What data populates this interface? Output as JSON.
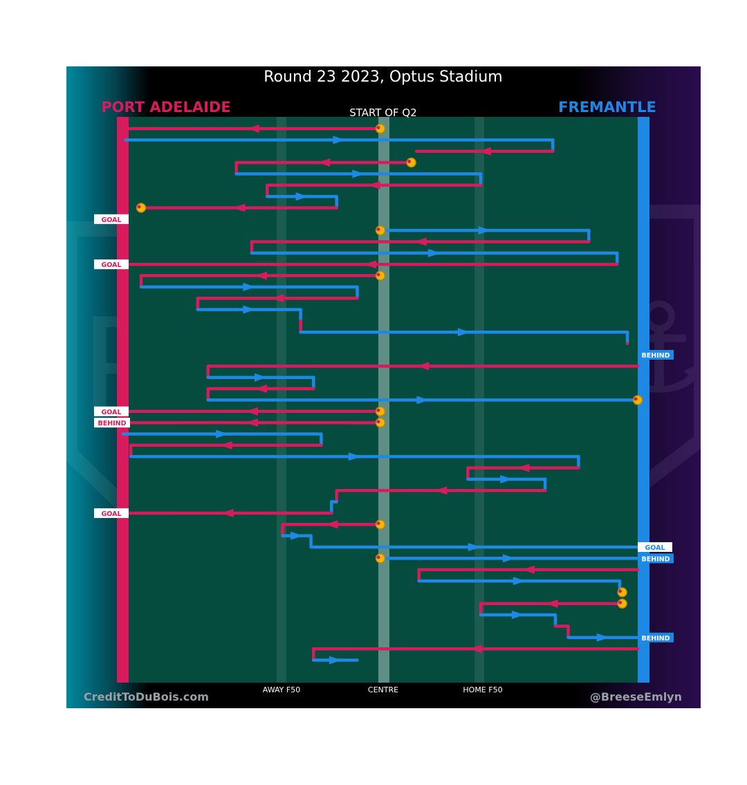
{
  "colors": {
    "home": "#d81b5d",
    "away": "#1e88e5",
    "field": "#054c3e",
    "marker_fill": "#f2b705",
    "marker_ring": "#b8860b",
    "text_light": "#ffffff",
    "text_muted": "#9aa0a6"
  },
  "chart_data": {
    "type": "ball-movement-chain",
    "title": "Round 23 2023, Optus Stadium",
    "subtitle": "START OF Q2",
    "teams": {
      "left": "PORT ADELAIDE",
      "right": "FREMANTLE"
    },
    "x_axis": {
      "domain": [
        0,
        100
      ],
      "ticks": [
        {
          "label": "AWAY F50",
          "x": 30
        },
        {
          "label": "CENTRE",
          "x": 50
        },
        {
          "label": "HOME F50",
          "x": 70
        }
      ]
    },
    "credits": {
      "left": "CreditToDuBois.com",
      "right": "@BreeseEmlyn"
    },
    "labels": {
      "goal": "GOAL",
      "behind": "BEHIND"
    },
    "chains": [
      {
        "segments": [
          {
            "team": "home",
            "row": 0,
            "x0": 50,
            "x1": 0.5
          },
          {
            "team": "away",
            "row": 1,
            "x0": 0.5,
            "x1": 83.5
          },
          {
            "team": "home",
            "row": 2,
            "x0": 83.5,
            "x1": 57
          }
        ],
        "start_marker": true
      },
      {
        "segments": [
          {
            "team": "home",
            "row": 3,
            "x0": 56,
            "x1": 22
          },
          {
            "team": "away",
            "row": 4,
            "x0": 22,
            "x1": 69.5
          },
          {
            "team": "home",
            "row": 5,
            "x0": 69.5,
            "x1": 28
          },
          {
            "team": "away",
            "row": 6,
            "x0": 28,
            "x1": 41.5
          },
          {
            "team": "home",
            "row": 7,
            "x0": 41.5,
            "x1": 3.5
          }
        ],
        "start_marker": true,
        "end_marker": true,
        "outcome": "GOAL",
        "outcome_team": "home",
        "outcome_row": 8
      },
      {
        "segments": [
          {
            "team": "away",
            "row": 9,
            "x0": 50,
            "x1": 90.5
          },
          {
            "team": "home",
            "row": 10,
            "x0": 90.5,
            "x1": 25
          },
          {
            "team": "away",
            "row": 11,
            "x0": 25,
            "x1": 96
          },
          {
            "team": "home",
            "row": 12,
            "x0": 96,
            "x1": 0
          }
        ],
        "start_marker": true,
        "end_marker": true,
        "outcome": "GOAL",
        "outcome_team": "home",
        "outcome_row": 12
      },
      {
        "segments": [
          {
            "team": "home",
            "row": 13,
            "x0": 50,
            "x1": 3.5
          },
          {
            "team": "away",
            "row": 14,
            "x0": 3.5,
            "x1": 45.5
          },
          {
            "team": "home",
            "row": 15,
            "x0": 45.5,
            "x1": 14.5
          },
          {
            "team": "away",
            "row": 16,
            "x0": 14.5,
            "x1": 34.5
          },
          {
            "team": "home",
            "row": 17,
            "x0": 34.5,
            "x1": 34.5
          },
          {
            "team": "away",
            "row": 18,
            "x0": 34.5,
            "x1": 98
          },
          {
            "team": "home",
            "row": 19,
            "x0": 98,
            "x1": 98
          }
        ],
        "start_marker": true
      },
      {
        "segments": [
          {
            "team": "home",
            "row": 21,
            "x0": 100,
            "x1": 16.5
          },
          {
            "team": "away",
            "row": 22,
            "x0": 16.5,
            "x1": 37
          },
          {
            "team": "home",
            "row": 23,
            "x0": 37,
            "x1": 16.5
          },
          {
            "team": "away",
            "row": 24,
            "x0": 16.5,
            "x1": 100
          }
        ],
        "end_marker": true,
        "outcome": "BEHIND",
        "outcome_team": "away",
        "outcome_row": 20
      },
      {
        "segments": [
          {
            "team": "home",
            "row": 25,
            "x0": 50,
            "x1": 0
          }
        ],
        "start_marker": true,
        "outcome": "GOAL",
        "outcome_team": "home",
        "outcome_row": 25
      },
      {
        "segments": [
          {
            "team": "home",
            "row": 26,
            "x0": 50,
            "x1": 0
          }
        ],
        "start_marker": true,
        "outcome": "BEHIND",
        "outcome_team": "home",
        "outcome_row": 26
      },
      {
        "segments": [
          {
            "team": "away",
            "row": 27,
            "x0": 0,
            "x1": 38.5
          },
          {
            "team": "home",
            "row": 28,
            "x0": 38.5,
            "x1": 1.5
          },
          {
            "team": "away",
            "row": 29,
            "x0": 1.5,
            "x1": 88.5
          },
          {
            "team": "home",
            "row": 30,
            "x0": 88.5,
            "x1": 67
          },
          {
            "team": "away",
            "row": 31,
            "x0": 67,
            "x1": 82
          },
          {
            "team": "home",
            "row": 32,
            "x0": 82,
            "x1": 41.5
          },
          {
            "team": "away",
            "row": 33,
            "x0": 41.5,
            "x1": 40.5
          },
          {
            "team": "home",
            "row": 34,
            "x0": 40.5,
            "x1": 0
          }
        ],
        "outcome": "GOAL",
        "outcome_team": "home",
        "outcome_row": 34
      },
      {
        "segments": [
          {
            "team": "home",
            "row": 35,
            "x0": 50,
            "x1": 31
          },
          {
            "team": "away",
            "row": 36,
            "x0": 31,
            "x1": 36.5
          },
          {
            "team": "away",
            "row": 37,
            "x0": 36.5,
            "x1": 100
          }
        ],
        "start_marker": true,
        "outcome": "GOAL",
        "outcome_team": "away",
        "outcome_row": 37
      },
      {
        "segments": [
          {
            "team": "away",
            "row": 38,
            "x0": 50,
            "x1": 100
          }
        ],
        "start_marker": true,
        "outcome": "BEHIND",
        "outcome_team": "away",
        "outcome_row": 38
      },
      {
        "segments": [
          {
            "team": "home",
            "row": 39,
            "x0": 100,
            "x1": 57.5
          },
          {
            "team": "away",
            "row": 40,
            "x0": 57.5,
            "x1": 96.5
          },
          {
            "team": "home",
            "row": 41,
            "x0": 96.5,
            "x1": 97
          }
        ],
        "end_marker": true
      },
      {
        "segments": [
          {
            "team": "home",
            "row": 42,
            "x0": 97,
            "x1": 69.5
          },
          {
            "team": "away",
            "row": 43,
            "x0": 69.5,
            "x1": 84
          },
          {
            "team": "home",
            "row": 44,
            "x0": 84,
            "x1": 86.5
          },
          {
            "team": "away",
            "row": 45,
            "x0": 86.5,
            "x1": 100
          }
        ],
        "start_marker": true,
        "outcome": "BEHIND",
        "outcome_team": "away",
        "outcome_row": 45
      },
      {
        "segments": [
          {
            "team": "home",
            "row": 46,
            "x0": 100,
            "x1": 37
          },
          {
            "team": "away",
            "row": 47,
            "x0": 37,
            "x1": 45.5
          }
        ]
      }
    ]
  }
}
